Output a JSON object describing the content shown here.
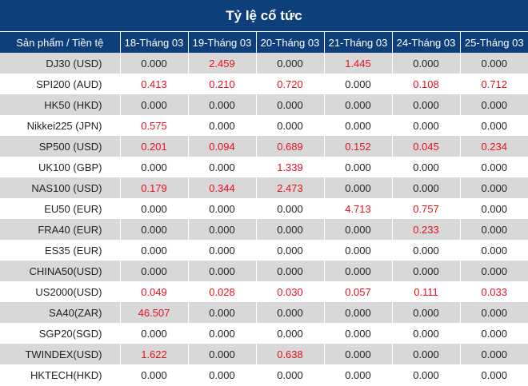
{
  "title": "Tỷ lệ cổ tức",
  "header": {
    "col0": "Sản phẩm / Tiền tệ",
    "dates": [
      "18-Tháng 03",
      "19-Tháng 03",
      "20-Tháng 03",
      "21-Tháng 03",
      "24-Tháng 03",
      "25-Tháng 03"
    ]
  },
  "colors": {
    "header_bg": "#0d3f7a",
    "positive_value": "#e5111e",
    "zero_value": "#222222",
    "stripe": "#d8d8d8"
  },
  "rows": [
    {
      "name": "DJ30 (USD)",
      "values": [
        "0.000",
        "2.459",
        "0.000",
        "1.445",
        "0.000",
        "0.000"
      ]
    },
    {
      "name": "SPI200 (AUD)",
      "values": [
        "0.413",
        "0.210",
        "0.720",
        "0.000",
        "0.108",
        "0.712"
      ]
    },
    {
      "name": "HK50 (HKD)",
      "values": [
        "0.000",
        "0.000",
        "0.000",
        "0.000",
        "0.000",
        "0.000"
      ]
    },
    {
      "name": "Nikkei225 (JPN)",
      "values": [
        "0.575",
        "0.000",
        "0.000",
        "0.000",
        "0.000",
        "0.000"
      ]
    },
    {
      "name": "SP500 (USD)",
      "values": [
        "0.201",
        "0.094",
        "0.689",
        "0.152",
        "0.045",
        "0.234"
      ]
    },
    {
      "name": "UK100 (GBP)",
      "values": [
        "0.000",
        "0.000",
        "1.339",
        "0.000",
        "0.000",
        "0.000"
      ]
    },
    {
      "name": "NAS100 (USD)",
      "values": [
        "0.179",
        "0.344",
        "2.473",
        "0.000",
        "0.000",
        "0.000"
      ]
    },
    {
      "name": "EU50 (EUR)",
      "values": [
        "0.000",
        "0.000",
        "0.000",
        "4.713",
        "0.757",
        "0.000"
      ]
    },
    {
      "name": "FRA40 (EUR)",
      "values": [
        "0.000",
        "0.000",
        "0.000",
        "0.000",
        "0.233",
        "0.000"
      ]
    },
    {
      "name": "ES35 (EUR)",
      "values": [
        "0.000",
        "0.000",
        "0.000",
        "0.000",
        "0.000",
        "0.000"
      ]
    },
    {
      "name": "CHINA50(USD)",
      "values": [
        "0.000",
        "0.000",
        "0.000",
        "0.000",
        "0.000",
        "0.000"
      ]
    },
    {
      "name": "US2000(USD)",
      "values": [
        "0.049",
        "0.028",
        "0.030",
        "0.057",
        "0.111",
        "0.033"
      ]
    },
    {
      "name": "SA40(ZAR)",
      "values": [
        "46.507",
        "0.000",
        "0.000",
        "0.000",
        "0.000",
        "0.000"
      ]
    },
    {
      "name": "SGP20(SGD)",
      "values": [
        "0.000",
        "0.000",
        "0.000",
        "0.000",
        "0.000",
        "0.000"
      ]
    },
    {
      "name": "TWINDEX(USD)",
      "values": [
        "1.622",
        "0.000",
        "0.638",
        "0.000",
        "0.000",
        "0.000"
      ]
    },
    {
      "name": "HKTECH(HKD)",
      "values": [
        "0.000",
        "0.000",
        "0.000",
        "0.000",
        "0.000",
        "0.000"
      ]
    }
  ]
}
